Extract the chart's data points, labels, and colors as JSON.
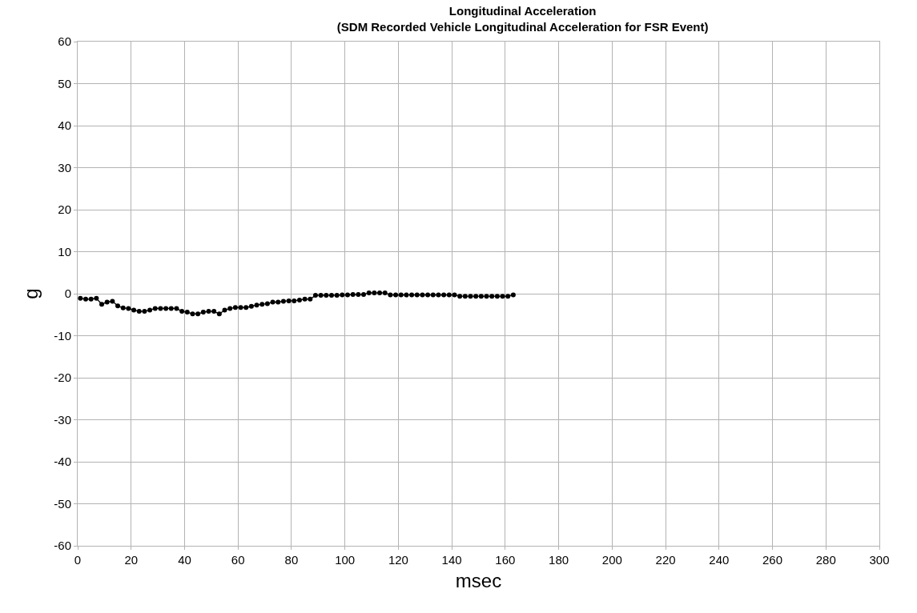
{
  "chart_data": {
    "type": "line",
    "title": "Longitudinal Acceleration",
    "subtitle": "(SDM Recorded Vehicle Longitudinal Acceleration for FSR Event)",
    "xlabel": "msec",
    "ylabel": "g",
    "xlim": [
      0,
      300
    ],
    "xticks": [
      0,
      20,
      40,
      60,
      80,
      100,
      120,
      140,
      160,
      180,
      200,
      220,
      240,
      260,
      280,
      300
    ],
    "ylim": [
      -60,
      60
    ],
    "yticks": [
      -60,
      -50,
      -40,
      -30,
      -20,
      -10,
      0,
      10,
      20,
      30,
      40,
      50,
      60
    ],
    "grid": true,
    "marker": "circle",
    "line_style": "solid",
    "series": [
      {
        "color": "#000000",
        "x": [
          1,
          3,
          5,
          7,
          9,
          11,
          13,
          15,
          17,
          19,
          21,
          23,
          25,
          27,
          29,
          31,
          33,
          35,
          37,
          39,
          41,
          43,
          45,
          47,
          49,
          51,
          53,
          55,
          57,
          59,
          61,
          63,
          65,
          67,
          69,
          71,
          73,
          75,
          77,
          79,
          81,
          83,
          85,
          87,
          89,
          91,
          93,
          95,
          97,
          99,
          101,
          103,
          105,
          107,
          109,
          111,
          113,
          115,
          117,
          119,
          121,
          123,
          125,
          127,
          129,
          131,
          133,
          135,
          137,
          139,
          141,
          143,
          145,
          147,
          149,
          151,
          153,
          155,
          157,
          159,
          161,
          163
        ],
        "values": [
          -1.1,
          -1.3,
          -1.3,
          -1.1,
          -2.5,
          -2.0,
          -1.8,
          -2.9,
          -3.4,
          -3.5,
          -3.9,
          -4.2,
          -4.2,
          -3.9,
          -3.5,
          -3.5,
          -3.5,
          -3.5,
          -3.5,
          -4.2,
          -4.4,
          -4.8,
          -4.8,
          -4.4,
          -4.2,
          -4.2,
          -4.8,
          -3.9,
          -3.5,
          -3.3,
          -3.3,
          -3.3,
          -3.0,
          -2.7,
          -2.5,
          -2.4,
          -2.0,
          -2.0,
          -1.8,
          -1.7,
          -1.7,
          -1.5,
          -1.3,
          -1.3,
          -0.4,
          -0.4,
          -0.4,
          -0.4,
          -0.4,
          -0.3,
          -0.3,
          -0.2,
          -0.2,
          -0.2,
          0.2,
          0.2,
          0.2,
          0.2,
          -0.3,
          -0.3,
          -0.3,
          -0.3,
          -0.3,
          -0.3,
          -0.3,
          -0.3,
          -0.3,
          -0.3,
          -0.3,
          -0.3,
          -0.3,
          -0.6,
          -0.6,
          -0.6,
          -0.6,
          -0.6,
          -0.6,
          -0.6,
          -0.6,
          -0.6,
          -0.6,
          -0.3
        ]
      }
    ]
  }
}
